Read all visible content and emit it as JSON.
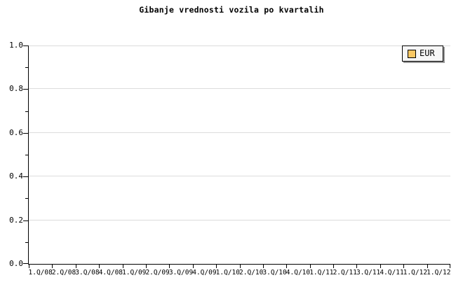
{
  "title": "Gibanje vrednosti vozila po kvartalih",
  "legend": {
    "label": "EUR",
    "swatch_color": "#FAC864",
    "background": "#F6F6F6",
    "shadow_color": "#999999"
  },
  "colors": {
    "axis": "#000000",
    "grid": "#DCDCDC",
    "text": "#000000",
    "background": "#FFFFFF"
  },
  "chart_data": {
    "type": "line",
    "title": "Gibanje vrednosti vozila po kvartalih",
    "xlabel": "",
    "ylabel": "",
    "ylim": [
      0.0,
      1.0
    ],
    "y_tick_labels": [
      "0.0",
      "0.2",
      "0.4",
      "0.6",
      "0.8",
      "1.0"
    ],
    "y_minor_ticks": [
      0.1,
      0.3,
      0.5,
      0.7,
      0.9
    ],
    "x_tick_labels": [
      "1.Q/08",
      "2.Q/08",
      "3.Q/08",
      "4.Q/08",
      "1.Q/09",
      "2.Q/09",
      "3.Q/09",
      "4.Q/09",
      "1.Q/10",
      "2.Q/10",
      "3.Q/10",
      "4.Q/10",
      "1.Q/11",
      "2.Q/11",
      "3.Q/11",
      "4.Q/11",
      "1.Q/12",
      "1.Q/12"
    ],
    "grid": "horizontal-major",
    "legend_position": "top-right",
    "legend_entries": [
      "EUR"
    ],
    "series": [
      {
        "name": "EUR",
        "color": "#FAC864",
        "values": []
      }
    ]
  }
}
